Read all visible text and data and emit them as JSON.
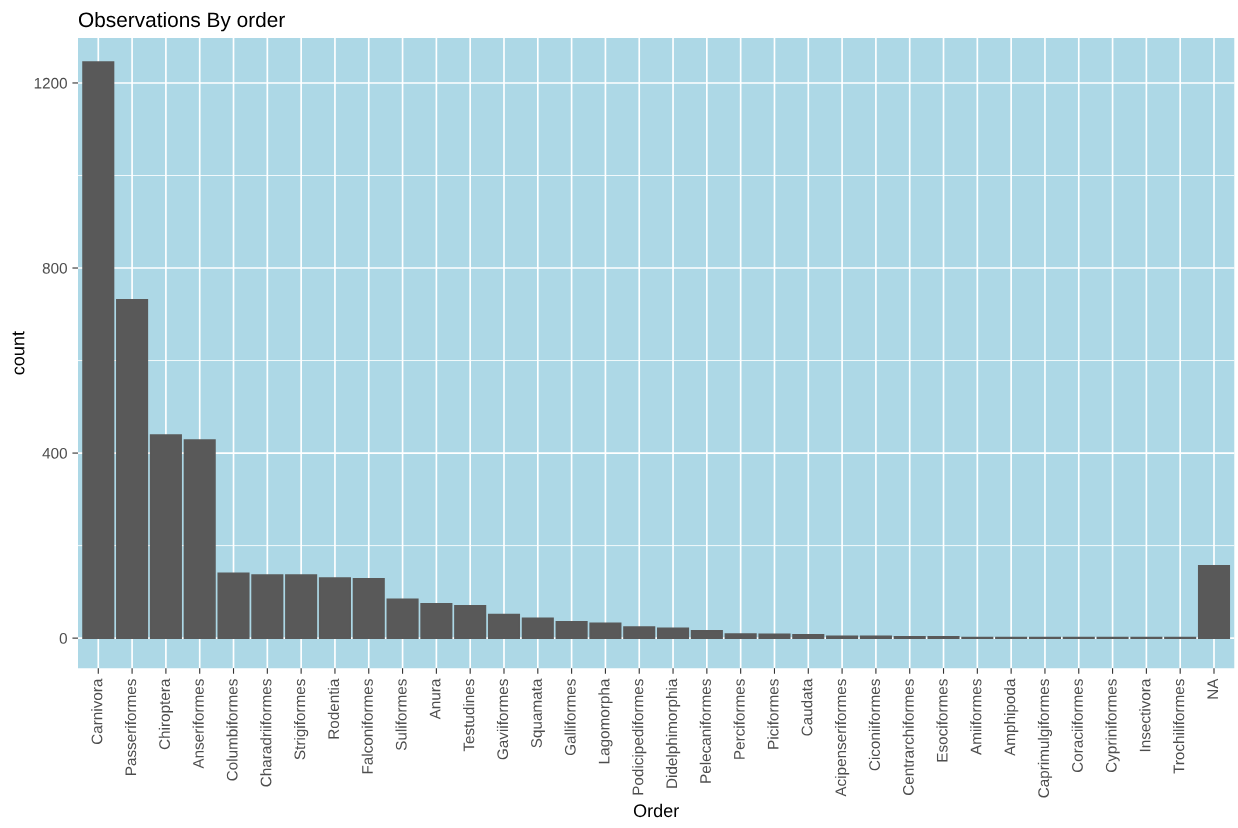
{
  "chart_data": {
    "type": "bar",
    "title": "Observations By order",
    "xlabel": "Order",
    "ylabel": "count",
    "categories": [
      "Carnivora",
      "Passeriformes",
      "Chiroptera",
      "Anseriformes",
      "Columbiformes",
      "Charadriiformes",
      "Strigiformes",
      "Rodentia",
      "Falconiformes",
      "Suliformes",
      "Anura",
      "Testudines",
      "Gaviiformes",
      "Squamata",
      "Galliformes",
      "Lagomorpha",
      "Podicipediformes",
      "Didelphimorphia",
      "Pelecaniformes",
      "Perciformes",
      "Piciformes",
      "Caudata",
      "Acipenseriformes",
      "Ciconiiformes",
      "Centrarchiformes",
      "Esociformes",
      "Amiiformes",
      "Amphipoda",
      "Caprimulgiformes",
      "Coraciiformes",
      "Cypriniformes",
      "Insectivora",
      "Trochiliformes",
      "NA"
    ],
    "values": [
      1245,
      731,
      439,
      428,
      140,
      136,
      136,
      130,
      128,
      84,
      74,
      70,
      51,
      43,
      35,
      32,
      24,
      21,
      16,
      9,
      8,
      7,
      4,
      4,
      3,
      3,
      1,
      1,
      1,
      1,
      1,
      1,
      1,
      156
    ],
    "color": "#595959",
    "ylim": [
      -65,
      1297
    ],
    "yticks": [
      0,
      {
        "value": 200,
        "label": null
      },
      400,
      {
        "value": 600,
        "label": null
      },
      800,
      {
        "value": 1000,
        "label": null
      },
      1200
    ],
    "grid": true
  }
}
